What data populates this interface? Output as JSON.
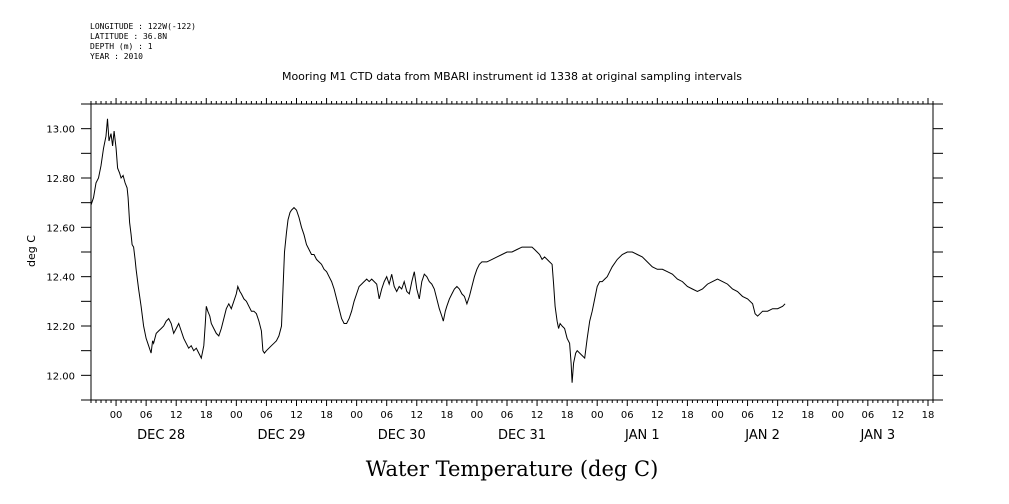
{
  "meta": {
    "longitude": "LONGITUDE : 122W(-122)",
    "latitude": "LATITUDE : 36.8N",
    "depth": "DEPTH (m) : 1",
    "year": "YEAR : 2010"
  },
  "chart_data": {
    "type": "line",
    "title": "Mooring M1 CTD data from MBARI instrument id 1338 at original sampling intervals",
    "xlabel": "Water Temperature (deg C)",
    "ylabel": "deg C",
    "ylim": [
      11.9,
      13.1
    ],
    "yticks": [
      12.0,
      12.2,
      12.4,
      12.6,
      12.8,
      13.0
    ],
    "ytick_labels": [
      "12.00",
      "12.20",
      "12.40",
      "12.60",
      "12.80",
      "13.00"
    ],
    "x_unit": "hours since Dec 27 2010 00:00",
    "xlim": [
      19,
      187
    ],
    "hour_ticks": [
      {
        "x": 24,
        "label": "00"
      },
      {
        "x": 30,
        "label": "06"
      },
      {
        "x": 36,
        "label": "12"
      },
      {
        "x": 42,
        "label": "18"
      },
      {
        "x": 48,
        "label": "00"
      },
      {
        "x": 54,
        "label": "06"
      },
      {
        "x": 60,
        "label": "12"
      },
      {
        "x": 66,
        "label": "18"
      },
      {
        "x": 72,
        "label": "00"
      },
      {
        "x": 78,
        "label": "06"
      },
      {
        "x": 84,
        "label": "12"
      },
      {
        "x": 90,
        "label": "18"
      },
      {
        "x": 96,
        "label": "00"
      },
      {
        "x": 102,
        "label": "06"
      },
      {
        "x": 108,
        "label": "12"
      },
      {
        "x": 114,
        "label": "18"
      },
      {
        "x": 120,
        "label": "00"
      },
      {
        "x": 126,
        "label": "06"
      },
      {
        "x": 132,
        "label": "12"
      },
      {
        "x": 138,
        "label": "18"
      },
      {
        "x": 144,
        "label": "00"
      },
      {
        "x": 150,
        "label": "06"
      },
      {
        "x": 156,
        "label": "12"
      },
      {
        "x": 162,
        "label": "18"
      },
      {
        "x": 168,
        "label": "00"
      },
      {
        "x": 174,
        "label": "06"
      },
      {
        "x": 180,
        "label": "12"
      },
      {
        "x": 186,
        "label": "18"
      }
    ],
    "day_labels": [
      {
        "x": 33,
        "label": "DEC 28"
      },
      {
        "x": 57,
        "label": "DEC 29"
      },
      {
        "x": 81,
        "label": "DEC 30"
      },
      {
        "x": 105,
        "label": "DEC 31"
      },
      {
        "x": 129,
        "label": "JAN  1"
      },
      {
        "x": 153,
        "label": "JAN  2"
      },
      {
        "x": 176,
        "label": "JAN  3"
      }
    ],
    "series": [
      {
        "points": [
          [
            19.0,
            12.69
          ],
          [
            19.5,
            12.72
          ],
          [
            20.0,
            12.78
          ],
          [
            20.5,
            12.8
          ],
          [
            21.0,
            12.85
          ],
          [
            21.5,
            12.92
          ],
          [
            22.0,
            12.97
          ],
          [
            22.3,
            13.04
          ],
          [
            22.6,
            12.95
          ],
          [
            23.0,
            12.98
          ],
          [
            23.3,
            12.93
          ],
          [
            23.6,
            12.99
          ],
          [
            24.0,
            12.92
          ],
          [
            24.3,
            12.84
          ],
          [
            24.7,
            12.82
          ],
          [
            25.0,
            12.8
          ],
          [
            25.4,
            12.81
          ],
          [
            25.8,
            12.78
          ],
          [
            26.2,
            12.76
          ],
          [
            26.4,
            12.72
          ],
          [
            26.7,
            12.62
          ],
          [
            27.0,
            12.57
          ],
          [
            27.2,
            12.53
          ],
          [
            27.5,
            12.52
          ],
          [
            27.8,
            12.47
          ],
          [
            28.0,
            12.43
          ],
          [
            28.5,
            12.35
          ],
          [
            29.0,
            12.28
          ],
          [
            29.5,
            12.2
          ],
          [
            30.0,
            12.15
          ],
          [
            30.5,
            12.12
          ],
          [
            31.0,
            12.09
          ],
          [
            31.3,
            12.14
          ],
          [
            31.5,
            12.13
          ],
          [
            32.0,
            12.17
          ],
          [
            32.5,
            12.18
          ],
          [
            33.0,
            12.19
          ],
          [
            33.5,
            12.2
          ],
          [
            34.0,
            12.22
          ],
          [
            34.5,
            12.23
          ],
          [
            35.0,
            12.21
          ],
          [
            35.5,
            12.17
          ],
          [
            36.0,
            12.19
          ],
          [
            36.5,
            12.21
          ],
          [
            37.0,
            12.18
          ],
          [
            37.5,
            12.15
          ],
          [
            38.0,
            12.13
          ],
          [
            38.5,
            12.11
          ],
          [
            39.0,
            12.12
          ],
          [
            39.5,
            12.1
          ],
          [
            40.0,
            12.11
          ],
          [
            40.5,
            12.09
          ],
          [
            41.0,
            12.07
          ],
          [
            41.5,
            12.12
          ],
          [
            41.8,
            12.21
          ],
          [
            42.0,
            12.28
          ],
          [
            42.3,
            12.26
          ],
          [
            42.7,
            12.24
          ],
          [
            43.0,
            12.21
          ],
          [
            43.5,
            12.19
          ],
          [
            44.0,
            12.17
          ],
          [
            44.5,
            12.16
          ],
          [
            45.0,
            12.19
          ],
          [
            45.5,
            12.23
          ],
          [
            46.0,
            12.27
          ],
          [
            46.5,
            12.29
          ],
          [
            47.0,
            12.27
          ],
          [
            47.5,
            12.3
          ],
          [
            48.0,
            12.33
          ],
          [
            48.3,
            12.36
          ],
          [
            48.7,
            12.34
          ],
          [
            49.0,
            12.33
          ],
          [
            49.5,
            12.31
          ],
          [
            50.0,
            12.3
          ],
          [
            50.5,
            12.28
          ],
          [
            51.0,
            12.26
          ],
          [
            51.5,
            12.26
          ],
          [
            52.0,
            12.25
          ],
          [
            52.5,
            12.22
          ],
          [
            53.0,
            12.18
          ],
          [
            53.3,
            12.1
          ],
          [
            53.6,
            12.09
          ],
          [
            54.0,
            12.1
          ],
          [
            54.5,
            12.11
          ],
          [
            55.0,
            12.12
          ],
          [
            55.5,
            12.13
          ],
          [
            56.0,
            12.14
          ],
          [
            56.5,
            12.16
          ],
          [
            57.0,
            12.2
          ],
          [
            57.3,
            12.35
          ],
          [
            57.6,
            12.5
          ],
          [
            58.0,
            12.58
          ],
          [
            58.3,
            12.63
          ],
          [
            58.7,
            12.66
          ],
          [
            59.0,
            12.67
          ],
          [
            59.5,
            12.68
          ],
          [
            60.0,
            12.67
          ],
          [
            60.5,
            12.64
          ],
          [
            61.0,
            12.6
          ],
          [
            61.5,
            12.57
          ],
          [
            62.0,
            12.53
          ],
          [
            62.5,
            12.51
          ],
          [
            63.0,
            12.49
          ],
          [
            63.5,
            12.49
          ],
          [
            64.0,
            12.47
          ],
          [
            64.5,
            12.46
          ],
          [
            65.0,
            12.45
          ],
          [
            65.5,
            12.43
          ],
          [
            66.0,
            12.42
          ],
          [
            66.5,
            12.4
          ],
          [
            67.0,
            12.38
          ],
          [
            67.5,
            12.35
          ],
          [
            68.0,
            12.31
          ],
          [
            68.5,
            12.27
          ],
          [
            69.0,
            12.23
          ],
          [
            69.5,
            12.21
          ],
          [
            70.0,
            12.21
          ],
          [
            70.5,
            12.23
          ],
          [
            71.0,
            12.26
          ],
          [
            71.5,
            12.3
          ],
          [
            72.0,
            12.33
          ],
          [
            72.5,
            12.36
          ],
          [
            73.0,
            12.37
          ],
          [
            73.5,
            12.38
          ],
          [
            74.0,
            12.39
          ],
          [
            74.5,
            12.38
          ],
          [
            75.0,
            12.39
          ],
          [
            75.5,
            12.38
          ],
          [
            76.0,
            12.37
          ],
          [
            76.5,
            12.31
          ],
          [
            77.0,
            12.35
          ],
          [
            77.5,
            12.38
          ],
          [
            78.0,
            12.4
          ],
          [
            78.5,
            12.37
          ],
          [
            79.0,
            12.41
          ],
          [
            79.5,
            12.36
          ],
          [
            80.0,
            12.34
          ],
          [
            80.5,
            12.36
          ],
          [
            81.0,
            12.35
          ],
          [
            81.5,
            12.38
          ],
          [
            82.0,
            12.34
          ],
          [
            82.5,
            12.33
          ],
          [
            83.0,
            12.38
          ],
          [
            83.5,
            12.42
          ],
          [
            84.0,
            12.35
          ],
          [
            84.5,
            12.31
          ],
          [
            85.0,
            12.38
          ],
          [
            85.5,
            12.41
          ],
          [
            86.0,
            12.4
          ],
          [
            86.5,
            12.38
          ],
          [
            87.0,
            12.37
          ],
          [
            87.5,
            12.35
          ],
          [
            88.0,
            12.31
          ],
          [
            88.5,
            12.27
          ],
          [
            89.0,
            12.24
          ],
          [
            89.3,
            12.22
          ],
          [
            89.7,
            12.26
          ],
          [
            90.0,
            12.28
          ],
          [
            90.5,
            12.31
          ],
          [
            91.0,
            12.33
          ],
          [
            91.5,
            12.35
          ],
          [
            92.0,
            12.36
          ],
          [
            92.5,
            12.35
          ],
          [
            93.0,
            12.33
          ],
          [
            93.5,
            12.32
          ],
          [
            94.0,
            12.29
          ],
          [
            94.5,
            12.32
          ],
          [
            95.0,
            12.36
          ],
          [
            95.5,
            12.4
          ],
          [
            96.0,
            12.43
          ],
          [
            96.5,
            12.45
          ],
          [
            97.0,
            12.46
          ],
          [
            98.0,
            12.46
          ],
          [
            99.0,
            12.47
          ],
          [
            100.0,
            12.48
          ],
          [
            101.0,
            12.49
          ],
          [
            102.0,
            12.5
          ],
          [
            103.0,
            12.5
          ],
          [
            104.0,
            12.51
          ],
          [
            105.0,
            12.52
          ],
          [
            106.0,
            12.52
          ],
          [
            107.0,
            12.52
          ],
          [
            107.5,
            12.51
          ],
          [
            108.0,
            12.5
          ],
          [
            108.5,
            12.49
          ],
          [
            109.0,
            12.47
          ],
          [
            109.5,
            12.48
          ],
          [
            110.0,
            12.47
          ],
          [
            110.5,
            12.46
          ],
          [
            111.0,
            12.45
          ],
          [
            111.3,
            12.37
          ],
          [
            111.6,
            12.28
          ],
          [
            112.0,
            12.22
          ],
          [
            112.3,
            12.19
          ],
          [
            112.6,
            12.21
          ],
          [
            113.0,
            12.2
          ],
          [
            113.5,
            12.19
          ],
          [
            114.0,
            12.15
          ],
          [
            114.5,
            12.13
          ],
          [
            114.8,
            12.05
          ],
          [
            115.0,
            11.97
          ],
          [
            115.3,
            12.05
          ],
          [
            115.7,
            12.09
          ],
          [
            116.0,
            12.1
          ],
          [
            116.5,
            12.09
          ],
          [
            117.0,
            12.08
          ],
          [
            117.5,
            12.07
          ],
          [
            118.0,
            12.15
          ],
          [
            118.5,
            12.22
          ],
          [
            119.0,
            12.26
          ],
          [
            119.5,
            12.31
          ],
          [
            120.0,
            12.36
          ],
          [
            120.5,
            12.38
          ],
          [
            121.0,
            12.38
          ],
          [
            121.5,
            12.39
          ],
          [
            122.0,
            12.4
          ],
          [
            122.5,
            12.42
          ],
          [
            123.0,
            12.44
          ],
          [
            124.0,
            12.47
          ],
          [
            125.0,
            12.49
          ],
          [
            126.0,
            12.5
          ],
          [
            127.0,
            12.5
          ],
          [
            128.0,
            12.49
          ],
          [
            129.0,
            12.48
          ],
          [
            130.0,
            12.46
          ],
          [
            131.0,
            12.44
          ],
          [
            132.0,
            12.43
          ],
          [
            133.0,
            12.43
          ],
          [
            134.0,
            12.42
          ],
          [
            135.0,
            12.41
          ],
          [
            136.0,
            12.39
          ],
          [
            137.0,
            12.38
          ],
          [
            138.0,
            12.36
          ],
          [
            139.0,
            12.35
          ],
          [
            140.0,
            12.34
          ],
          [
            141.0,
            12.35
          ],
          [
            142.0,
            12.37
          ],
          [
            143.0,
            12.38
          ],
          [
            144.0,
            12.39
          ],
          [
            145.0,
            12.38
          ],
          [
            146.0,
            12.37
          ],
          [
            147.0,
            12.35
          ],
          [
            148.0,
            12.34
          ],
          [
            149.0,
            12.32
          ],
          [
            150.0,
            12.31
          ],
          [
            151.0,
            12.29
          ],
          [
            151.5,
            12.25
          ],
          [
            152.0,
            12.24
          ],
          [
            152.5,
            12.25
          ],
          [
            153.0,
            12.26
          ],
          [
            154.0,
            12.26
          ],
          [
            155.0,
            12.27
          ],
          [
            156.0,
            12.27
          ],
          [
            157.0,
            12.28
          ],
          [
            157.5,
            12.29
          ]
        ]
      }
    ]
  }
}
